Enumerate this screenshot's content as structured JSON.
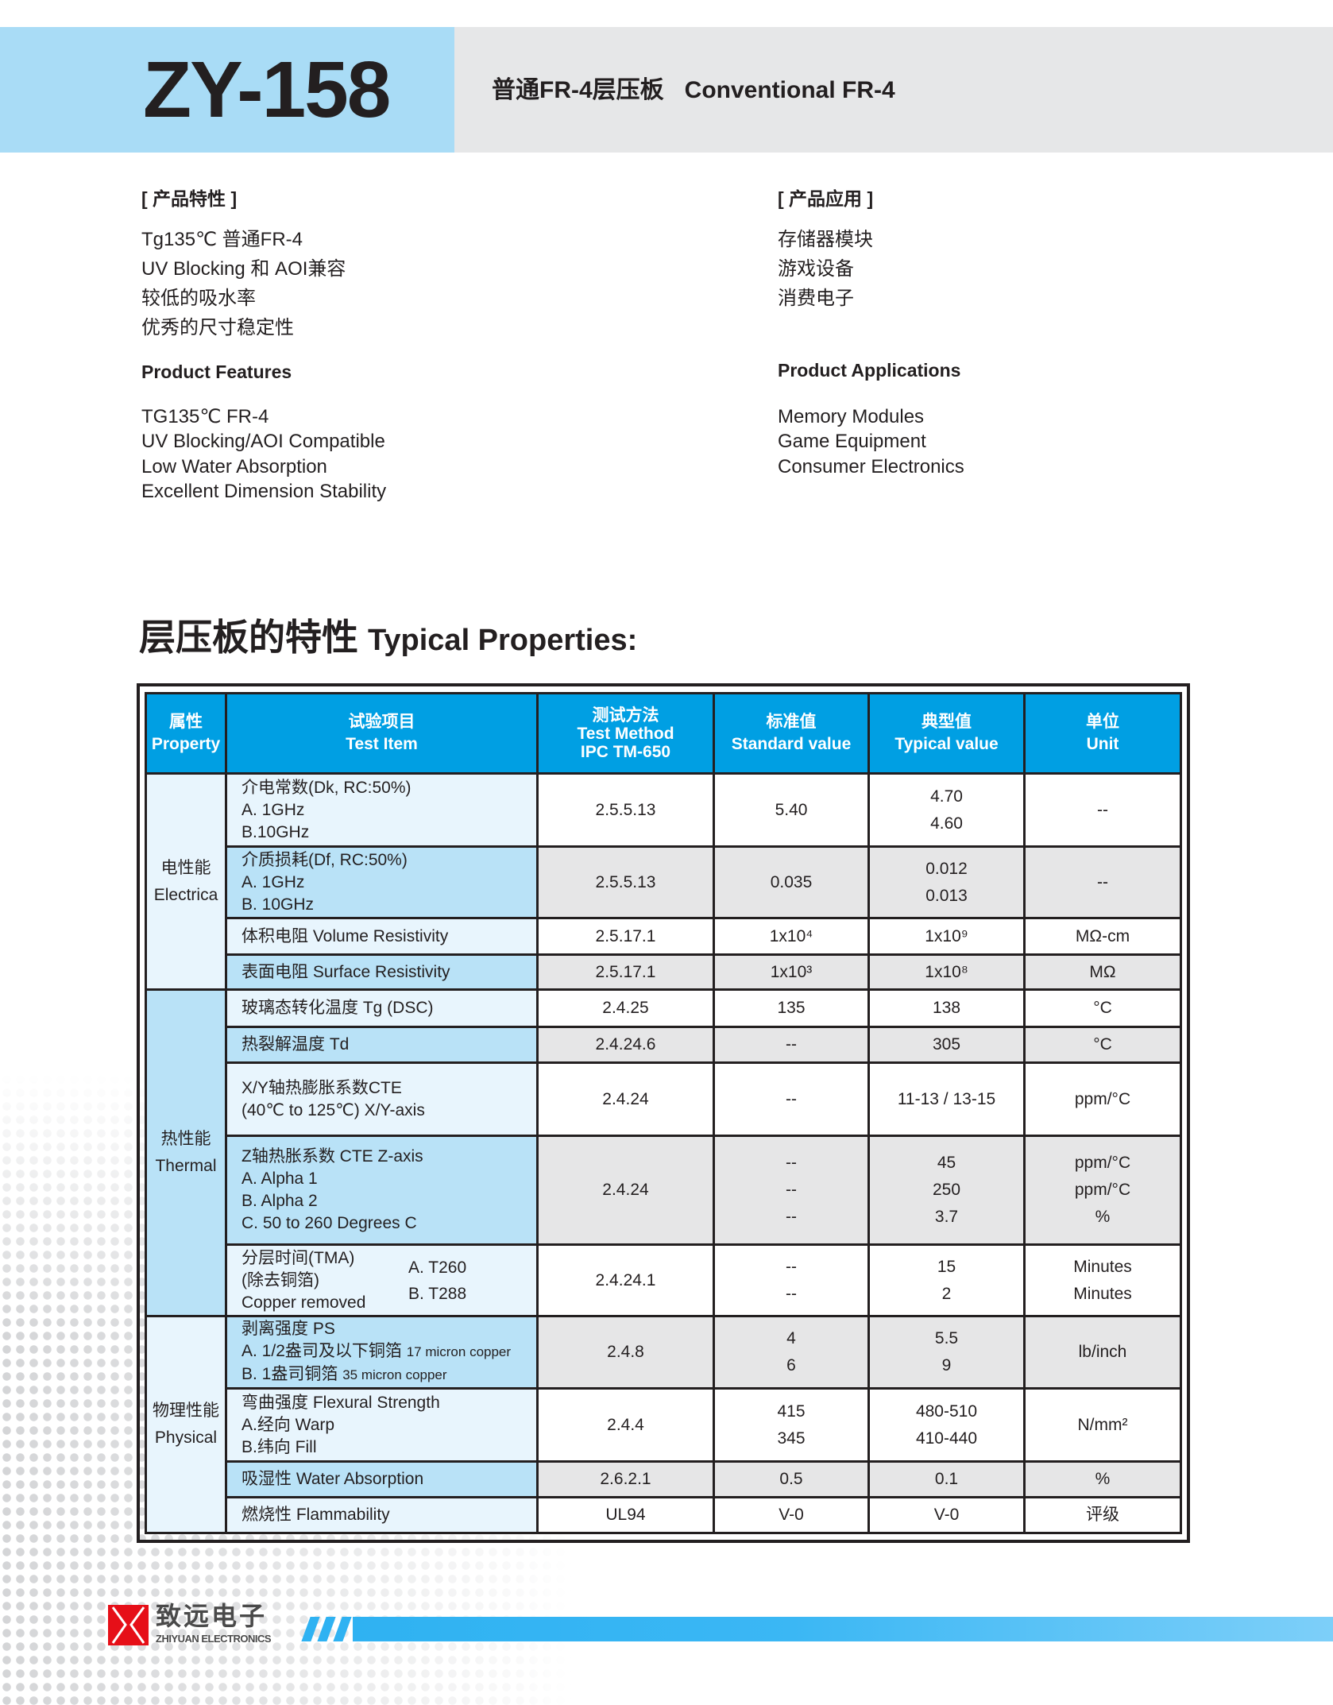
{
  "header": {
    "model": "ZY-158",
    "subtitle_cn": "普通FR-4层压板",
    "subtitle_en": "Conventional FR-4"
  },
  "features": {
    "cn_title": "[ 产品特性 ]",
    "cn_items": [
      "Tg135℃ 普通FR-4",
      " UV Blocking 和 AOI兼容",
      "较低的吸水率",
      "优秀的尺寸稳定性"
    ],
    "en_title": "Product Features",
    "en_items": [
      "TG135℃ FR-4",
      "UV Blocking/AOI Compatible",
      "Low Water Absorption",
      "Excellent Dimension Stability"
    ]
  },
  "applications": {
    "cn_title": "[ 产品应用 ]",
    "cn_items": [
      "存储器模块",
      "游戏设备",
      "消费电子"
    ],
    "en_title": "Product Applications",
    "en_items": [
      "Memory Modules",
      "Game Equipment",
      "Consumer Electronics"
    ]
  },
  "section": {
    "title_cn": "层压板的特性",
    "title_en": "Typical Properties:"
  },
  "colors": {
    "header_blue": "#009fe3",
    "light_blue": "#e8f5fd",
    "mid_blue": "#b9e2f7",
    "gray": "#e6e6e7",
    "brand_red": "#e60f18",
    "bar_blue": "#2fb2f2"
  },
  "table": {
    "headers": [
      [
        "属性",
        "Property"
      ],
      [
        "试验项目",
        "Test Item"
      ],
      [
        "测试方法",
        "Test Method",
        "IPC TM-650"
      ],
      [
        "标准值",
        "Standard value"
      ],
      [
        "典型值",
        "Typical value"
      ],
      [
        "单位",
        "Unit"
      ]
    ],
    "groups": [
      {
        "name": [
          "电性能",
          "Electrica"
        ],
        "rows": [
          {
            "item": [
              "介电常数(Dk, RC:50%)",
              "A. 1GHz",
              "B.10GHz"
            ],
            "method": "2.5.5.13",
            "std": [
              "5.40"
            ],
            "typ": [
              "4.70",
              "4.60"
            ],
            "unit": [
              "--"
            ]
          },
          {
            "item": [
              "介质损耗(Df, RC:50%)",
              "A. 1GHz",
              "B. 10GHz"
            ],
            "method": "2.5.5.13",
            "std": [
              "0.035"
            ],
            "typ": [
              "0.012",
              "0.013"
            ],
            "unit": [
              "--"
            ]
          },
          {
            "item": [
              "体积电阻 Volume Resistivity"
            ],
            "method": "2.5.17.1",
            "std": [
              "1x10⁴"
            ],
            "typ": [
              "1x10⁹"
            ],
            "unit": [
              "MΩ-cm"
            ]
          },
          {
            "item": [
              "表面电阻 Surface Resistivity"
            ],
            "method": "2.5.17.1",
            "std": [
              "1x10³"
            ],
            "typ": [
              "1x10⁸"
            ],
            "unit": [
              "MΩ"
            ]
          }
        ]
      },
      {
        "name": [
          "热性能",
          "Thermal"
        ],
        "rows": [
          {
            "item": [
              "玻璃态转化温度 Tg (DSC)"
            ],
            "method": "2.4.25",
            "std": [
              "135"
            ],
            "typ": [
              "138"
            ],
            "unit": [
              "°C"
            ]
          },
          {
            "item": [
              "热裂解温度 Td"
            ],
            "method": "2.4.24.6",
            "std": [
              "--"
            ],
            "typ": [
              "305"
            ],
            "unit": [
              "°C"
            ]
          },
          {
            "item": [
              "X/Y轴热膨胀系数CTE",
              " (40℃ to 125℃) X/Y-axis"
            ],
            "method": "2.4.24",
            "std": [
              "--"
            ],
            "typ": [
              "11-13 / 13-15"
            ],
            "unit": [
              "ppm/°C"
            ]
          },
          {
            "item": [
              "Z轴热胀系数 CTE Z-axis",
              " A. Alpha 1",
              " B. Alpha 2",
              " C. 50 to 260 Degrees C"
            ],
            "method": "2.4.24",
            "std": [
              "--",
              "--",
              "--"
            ],
            "typ": [
              "45",
              "250",
              "3.7"
            ],
            "unit": [
              "ppm/°C",
              "ppm/°C",
              "%"
            ]
          },
          {
            "item": [
              "分层时间(TMA)",
              "(除去铜箔)",
              "Copper removed"
            ],
            "sub": [
              "A. T260",
              "B. T288"
            ],
            "method": "2.4.24.1",
            "std": [
              "--",
              "--"
            ],
            "typ": [
              "15",
              "2"
            ],
            "unit": [
              "Minutes",
              "Minutes"
            ]
          }
        ]
      },
      {
        "name": [
          "物理性能",
          "Physical"
        ],
        "rows": [
          {
            "item": [
              "剥离强度 PS",
              "A. 1/2盎司及以下铜箔 ",
              "B. 1盎司铜箔 "
            ],
            "item_small": [
              "",
              "17 micron copper",
              "35 micron copper"
            ],
            "method": "2.4.8",
            "std": [
              "4",
              "6"
            ],
            "typ": [
              "5.5",
              "9"
            ],
            "unit": [
              "lb/inch"
            ]
          },
          {
            "item": [
              "弯曲强度 Flexural Strength",
              "A.经向 Warp",
              "B.纬向 Fill"
            ],
            "method": "2.4.4",
            "std": [
              "415",
              "345"
            ],
            "typ": [
              "480-510",
              "410-440"
            ],
            "unit": [
              "N/mm²"
            ]
          },
          {
            "item": [
              "吸湿性 Water Absorption"
            ],
            "method": "2.6.2.1",
            "std": [
              "0.5"
            ],
            "typ": [
              "0.1"
            ],
            "unit": [
              "%"
            ]
          },
          {
            "item": [
              "燃烧性 Flammability"
            ],
            "method": "UL94",
            "std": [
              "V-0"
            ],
            "typ": [
              "V-0"
            ],
            "unit": [
              "评级"
            ]
          }
        ]
      }
    ]
  },
  "footer": {
    "logo_cn": "致远电子",
    "logo_en": "ZHIYUAN ELECTRONICS"
  }
}
